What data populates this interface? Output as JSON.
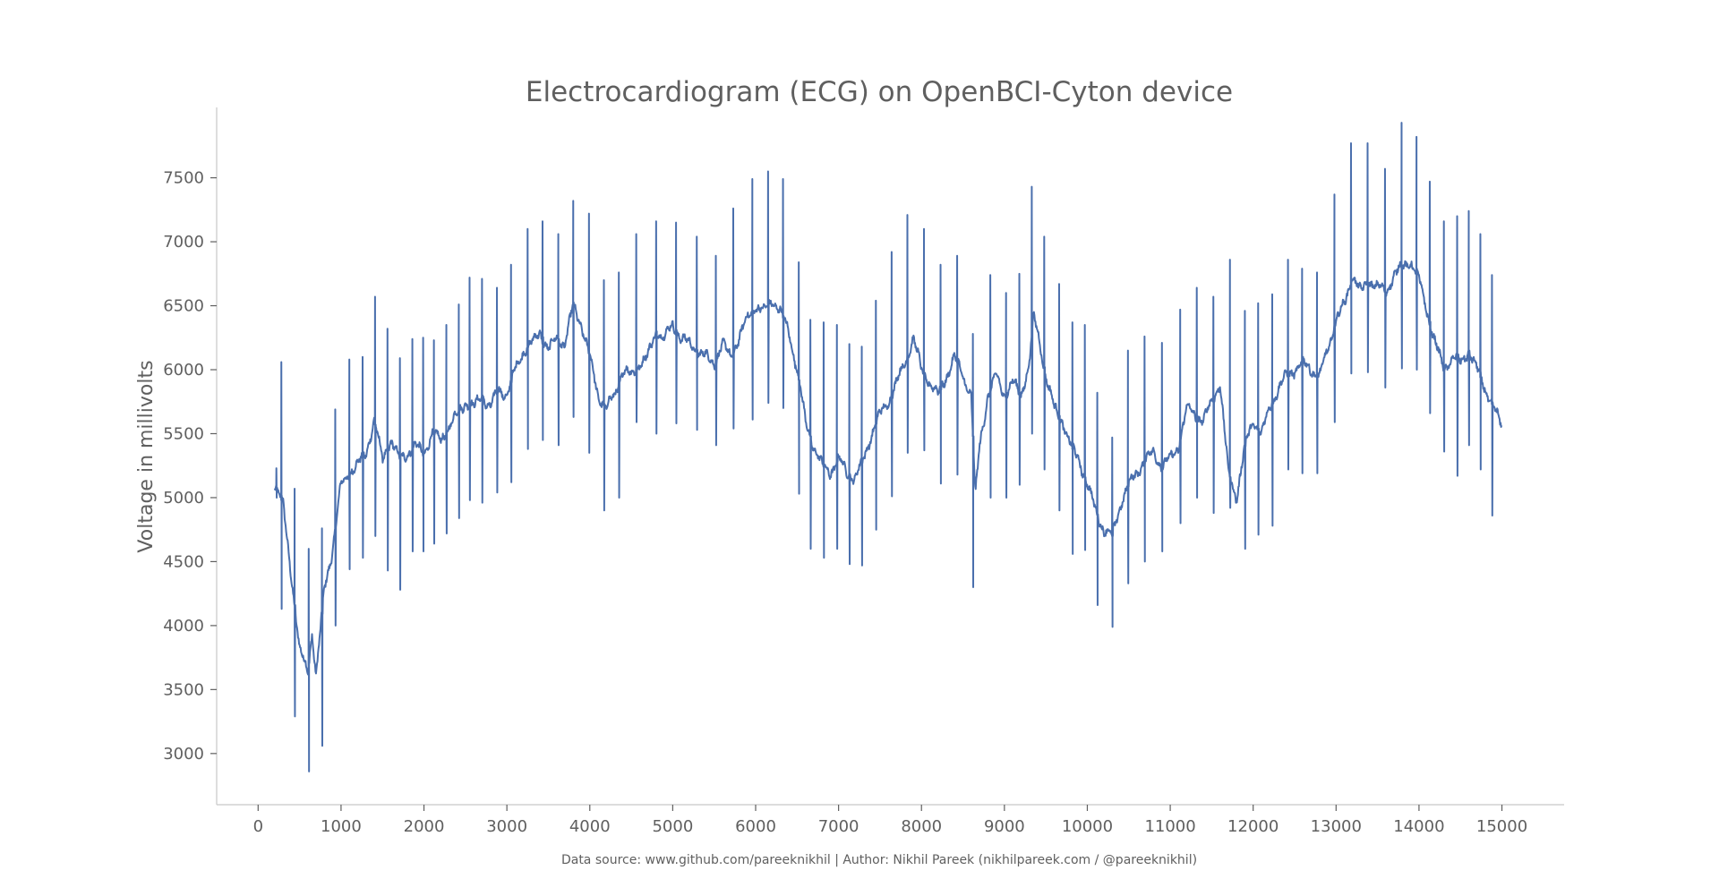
{
  "chart_data": {
    "type": "line",
    "title": "Electrocardiogram (ECG) on OpenBCI-Cyton device",
    "xlabel": "",
    "ylabel": "Voltage in millivolts",
    "footer": "Data source: www.github.com/pareeknikhil | Author: Nikhil Pareek (nikhilpareek.com / @pareeknikhil)",
    "xlim": [
      -500,
      15750
    ],
    "ylim": [
      2600,
      8050
    ],
    "x_ticks": [
      0,
      1000,
      2000,
      3000,
      4000,
      5000,
      6000,
      7000,
      8000,
      9000,
      10000,
      11000,
      12000,
      13000,
      14000,
      15000
    ],
    "y_ticks": [
      3000,
      3500,
      4000,
      4500,
      5000,
      5500,
      6000,
      6500,
      7000,
      7500
    ],
    "grid": false,
    "legend": "none",
    "line_color": "#4a6fad",
    "series": [
      {
        "x_start": 200,
        "x_end": 15000,
        "baseline": [
          [
            200,
            5100
          ],
          [
            300,
            4950
          ],
          [
            400,
            4400
          ],
          [
            500,
            3800
          ],
          [
            600,
            3650
          ],
          [
            650,
            3950
          ],
          [
            700,
            3600
          ],
          [
            800,
            4300
          ],
          [
            900,
            4600
          ],
          [
            1000,
            5100
          ],
          [
            1100,
            5200
          ],
          [
            1200,
            5250
          ],
          [
            1300,
            5350
          ],
          [
            1400,
            5600
          ],
          [
            1500,
            5300
          ],
          [
            1600,
            5450
          ],
          [
            1700,
            5300
          ],
          [
            1800,
            5350
          ],
          [
            1900,
            5400
          ],
          [
            2000,
            5350
          ],
          [
            2100,
            5500
          ],
          [
            2200,
            5450
          ],
          [
            2300,
            5550
          ],
          [
            2400,
            5650
          ],
          [
            2500,
            5750
          ],
          [
            2600,
            5700
          ],
          [
            2700,
            5800
          ],
          [
            2800,
            5700
          ],
          [
            2900,
            5850
          ],
          [
            3000,
            5800
          ],
          [
            3100,
            6000
          ],
          [
            3200,
            6150
          ],
          [
            3300,
            6200
          ],
          [
            3400,
            6300
          ],
          [
            3500,
            6150
          ],
          [
            3600,
            6250
          ],
          [
            3700,
            6200
          ],
          [
            3800,
            6500
          ],
          [
            3900,
            6350
          ],
          [
            4000,
            6100
          ],
          [
            4100,
            5800
          ],
          [
            4200,
            5700
          ],
          [
            4300,
            5800
          ],
          [
            4400,
            6000
          ],
          [
            4500,
            5950
          ],
          [
            4600,
            6050
          ],
          [
            4700,
            6100
          ],
          [
            4800,
            6300
          ],
          [
            4900,
            6250
          ],
          [
            5000,
            6350
          ],
          [
            5100,
            6250
          ],
          [
            5200,
            6200
          ],
          [
            5300,
            6150
          ],
          [
            5400,
            6100
          ],
          [
            5500,
            6050
          ],
          [
            5600,
            6200
          ],
          [
            5700,
            6100
          ],
          [
            5800,
            6250
          ],
          [
            5900,
            6400
          ],
          [
            6000,
            6500
          ],
          [
            6100,
            6450
          ],
          [
            6200,
            6550
          ],
          [
            6300,
            6450
          ],
          [
            6400,
            6300
          ],
          [
            6500,
            6000
          ],
          [
            6600,
            5600
          ],
          [
            6700,
            5400
          ],
          [
            6800,
            5250
          ],
          [
            6900,
            5200
          ],
          [
            7000,
            5300
          ],
          [
            7100,
            5200
          ],
          [
            7200,
            5150
          ],
          [
            7300,
            5300
          ],
          [
            7400,
            5500
          ],
          [
            7500,
            5650
          ],
          [
            7600,
            5750
          ],
          [
            7700,
            5900
          ],
          [
            7800,
            6050
          ],
          [
            7900,
            6250
          ],
          [
            8000,
            6000
          ],
          [
            8100,
            5900
          ],
          [
            8200,
            5800
          ],
          [
            8300,
            5950
          ],
          [
            8400,
            6100
          ],
          [
            8500,
            5950
          ],
          [
            8600,
            5800
          ],
          [
            8650,
            5000
          ],
          [
            8700,
            5400
          ],
          [
            8800,
            5800
          ],
          [
            8900,
            5950
          ],
          [
            9000,
            5800
          ],
          [
            9100,
            5900
          ],
          [
            9200,
            5800
          ],
          [
            9300,
            6050
          ],
          [
            9350,
            6400
          ],
          [
            9400,
            6300
          ],
          [
            9500,
            5950
          ],
          [
            9600,
            5700
          ],
          [
            9700,
            5600
          ],
          [
            9800,
            5400
          ],
          [
            9900,
            5300
          ],
          [
            10000,
            5100
          ],
          [
            10100,
            4900
          ],
          [
            10200,
            4750
          ],
          [
            10300,
            4700
          ],
          [
            10400,
            4950
          ],
          [
            10500,
            5100
          ],
          [
            10600,
            5200
          ],
          [
            10700,
            5300
          ],
          [
            10800,
            5350
          ],
          [
            10900,
            5250
          ],
          [
            11000,
            5300
          ],
          [
            11100,
            5400
          ],
          [
            11200,
            5700
          ],
          [
            11300,
            5650
          ],
          [
            11400,
            5600
          ],
          [
            11500,
            5750
          ],
          [
            11600,
            5900
          ],
          [
            11700,
            5200
          ],
          [
            11800,
            5000
          ],
          [
            11900,
            5400
          ],
          [
            12000,
            5600
          ],
          [
            12100,
            5500
          ],
          [
            12200,
            5700
          ],
          [
            12300,
            5850
          ],
          [
            12400,
            5950
          ],
          [
            12500,
            6000
          ],
          [
            12600,
            6050
          ],
          [
            12700,
            6000
          ],
          [
            12800,
            5950
          ],
          [
            12900,
            6150
          ],
          [
            13000,
            6400
          ],
          [
            13100,
            6500
          ],
          [
            13200,
            6750
          ],
          [
            13300,
            6600
          ],
          [
            13400,
            6700
          ],
          [
            13500,
            6650
          ],
          [
            13600,
            6600
          ],
          [
            13700,
            6750
          ],
          [
            13800,
            6800
          ],
          [
            13900,
            6850
          ],
          [
            14000,
            6700
          ],
          [
            14100,
            6450
          ],
          [
            14200,
            6200
          ],
          [
            14300,
            6000
          ],
          [
            14400,
            6100
          ],
          [
            14500,
            6050
          ],
          [
            14600,
            6150
          ],
          [
            14700,
            6000
          ],
          [
            14800,
            5850
          ],
          [
            14900,
            5700
          ],
          [
            15000,
            5550
          ]
        ],
        "spikes": [
          {
            "x": 220,
            "high": 5230,
            "low": 5000
          },
          {
            "x": 280,
            "high": 6060,
            "low": 4130
          },
          {
            "x": 440,
            "high": 5070,
            "low": 3290
          },
          {
            "x": 610,
            "high": 4600,
            "low": 2860
          },
          {
            "x": 770,
            "high": 4760,
            "low": 3060
          },
          {
            "x": 930,
            "high": 5690,
            "low": 4000
          },
          {
            "x": 1100,
            "high": 6080,
            "low": 4440
          },
          {
            "x": 1260,
            "high": 6100,
            "low": 4530
          },
          {
            "x": 1410,
            "high": 6570,
            "low": 4700
          },
          {
            "x": 1560,
            "high": 6320,
            "low": 4430
          },
          {
            "x": 1710,
            "high": 6090,
            "low": 4280
          },
          {
            "x": 1860,
            "high": 6240,
            "low": 4580
          },
          {
            "x": 1990,
            "high": 6250,
            "low": 4580
          },
          {
            "x": 2120,
            "high": 6230,
            "low": 4640
          },
          {
            "x": 2270,
            "high": 6350,
            "low": 4720
          },
          {
            "x": 2420,
            "high": 6510,
            "low": 4840
          },
          {
            "x": 2550,
            "high": 6720,
            "low": 4980
          },
          {
            "x": 2700,
            "high": 6710,
            "low": 4960
          },
          {
            "x": 2880,
            "high": 6640,
            "low": 5040
          },
          {
            "x": 3050,
            "high": 6820,
            "low": 5120
          },
          {
            "x": 3250,
            "high": 7100,
            "low": 5380
          },
          {
            "x": 3430,
            "high": 7160,
            "low": 5450
          },
          {
            "x": 3620,
            "high": 7060,
            "low": 5410
          },
          {
            "x": 3800,
            "high": 7320,
            "low": 5630
          },
          {
            "x": 3990,
            "high": 7220,
            "low": 5350
          },
          {
            "x": 4170,
            "high": 6700,
            "low": 4900
          },
          {
            "x": 4350,
            "high": 6760,
            "low": 5000
          },
          {
            "x": 4560,
            "high": 7060,
            "low": 5590
          },
          {
            "x": 4800,
            "high": 7160,
            "low": 5500
          },
          {
            "x": 5040,
            "high": 7150,
            "low": 5580
          },
          {
            "x": 5290,
            "high": 7040,
            "low": 5530
          },
          {
            "x": 5520,
            "high": 6890,
            "low": 5410
          },
          {
            "x": 5730,
            "high": 7260,
            "low": 5540
          },
          {
            "x": 5960,
            "high": 7490,
            "low": 5610
          },
          {
            "x": 6150,
            "high": 7550,
            "low": 5740
          },
          {
            "x": 6330,
            "high": 7490,
            "low": 5700
          },
          {
            "x": 6520,
            "high": 6840,
            "low": 5030
          },
          {
            "x": 6660,
            "high": 6390,
            "low": 4600
          },
          {
            "x": 6820,
            "high": 6370,
            "low": 4530
          },
          {
            "x": 6980,
            "high": 6350,
            "low": 4600
          },
          {
            "x": 7130,
            "high": 6200,
            "low": 4480
          },
          {
            "x": 7280,
            "high": 6180,
            "low": 4470
          },
          {
            "x": 7450,
            "high": 6540,
            "low": 4750
          },
          {
            "x": 7640,
            "high": 6920,
            "low": 5010
          },
          {
            "x": 7830,
            "high": 7210,
            "low": 5350
          },
          {
            "x": 8030,
            "high": 7100,
            "low": 5370
          },
          {
            "x": 8230,
            "high": 6820,
            "low": 5110
          },
          {
            "x": 8430,
            "high": 6890,
            "low": 5180
          },
          {
            "x": 8620,
            "high": 6280,
            "low": 4300
          },
          {
            "x": 8830,
            "high": 6740,
            "low": 5000
          },
          {
            "x": 9020,
            "high": 6600,
            "low": 5000
          },
          {
            "x": 9180,
            "high": 6750,
            "low": 5100
          },
          {
            "x": 9330,
            "high": 7430,
            "low": 5500
          },
          {
            "x": 9480,
            "high": 7040,
            "low": 5220
          },
          {
            "x": 9660,
            "high": 6670,
            "low": 4900
          },
          {
            "x": 9820,
            "high": 6370,
            "low": 4560
          },
          {
            "x": 9970,
            "high": 6350,
            "low": 4590
          },
          {
            "x": 10120,
            "high": 5820,
            "low": 4160
          },
          {
            "x": 10300,
            "high": 5470,
            "low": 3990
          },
          {
            "x": 10490,
            "high": 6150,
            "low": 4330
          },
          {
            "x": 10690,
            "high": 6260,
            "low": 4500
          },
          {
            "x": 10900,
            "high": 6210,
            "low": 4580
          },
          {
            "x": 11120,
            "high": 6470,
            "low": 4800
          },
          {
            "x": 11320,
            "high": 6640,
            "low": 5000
          },
          {
            "x": 11520,
            "high": 6570,
            "low": 4880
          },
          {
            "x": 11720,
            "high": 6860,
            "low": 4920
          },
          {
            "x": 11900,
            "high": 6460,
            "low": 4600
          },
          {
            "x": 12060,
            "high": 6520,
            "low": 4710
          },
          {
            "x": 12230,
            "high": 6590,
            "low": 4780
          },
          {
            "x": 12420,
            "high": 6860,
            "low": 5220
          },
          {
            "x": 12590,
            "high": 6790,
            "low": 5190
          },
          {
            "x": 12770,
            "high": 6760,
            "low": 5190
          },
          {
            "x": 12980,
            "high": 7370,
            "low": 5590
          },
          {
            "x": 13180,
            "high": 7770,
            "low": 5970
          },
          {
            "x": 13380,
            "high": 7770,
            "low": 5980
          },
          {
            "x": 13590,
            "high": 7570,
            "low": 5860
          },
          {
            "x": 13790,
            "high": 7930,
            "low": 6010
          },
          {
            "x": 13970,
            "high": 7820,
            "low": 6000
          },
          {
            "x": 14130,
            "high": 7470,
            "low": 5660
          },
          {
            "x": 14300,
            "high": 7160,
            "low": 5360
          },
          {
            "x": 14460,
            "high": 7200,
            "low": 5170
          },
          {
            "x": 14600,
            "high": 7240,
            "low": 5410
          },
          {
            "x": 14740,
            "high": 7060,
            "low": 5220
          },
          {
            "x": 14880,
            "high": 6740,
            "low": 4860
          }
        ]
      }
    ]
  }
}
